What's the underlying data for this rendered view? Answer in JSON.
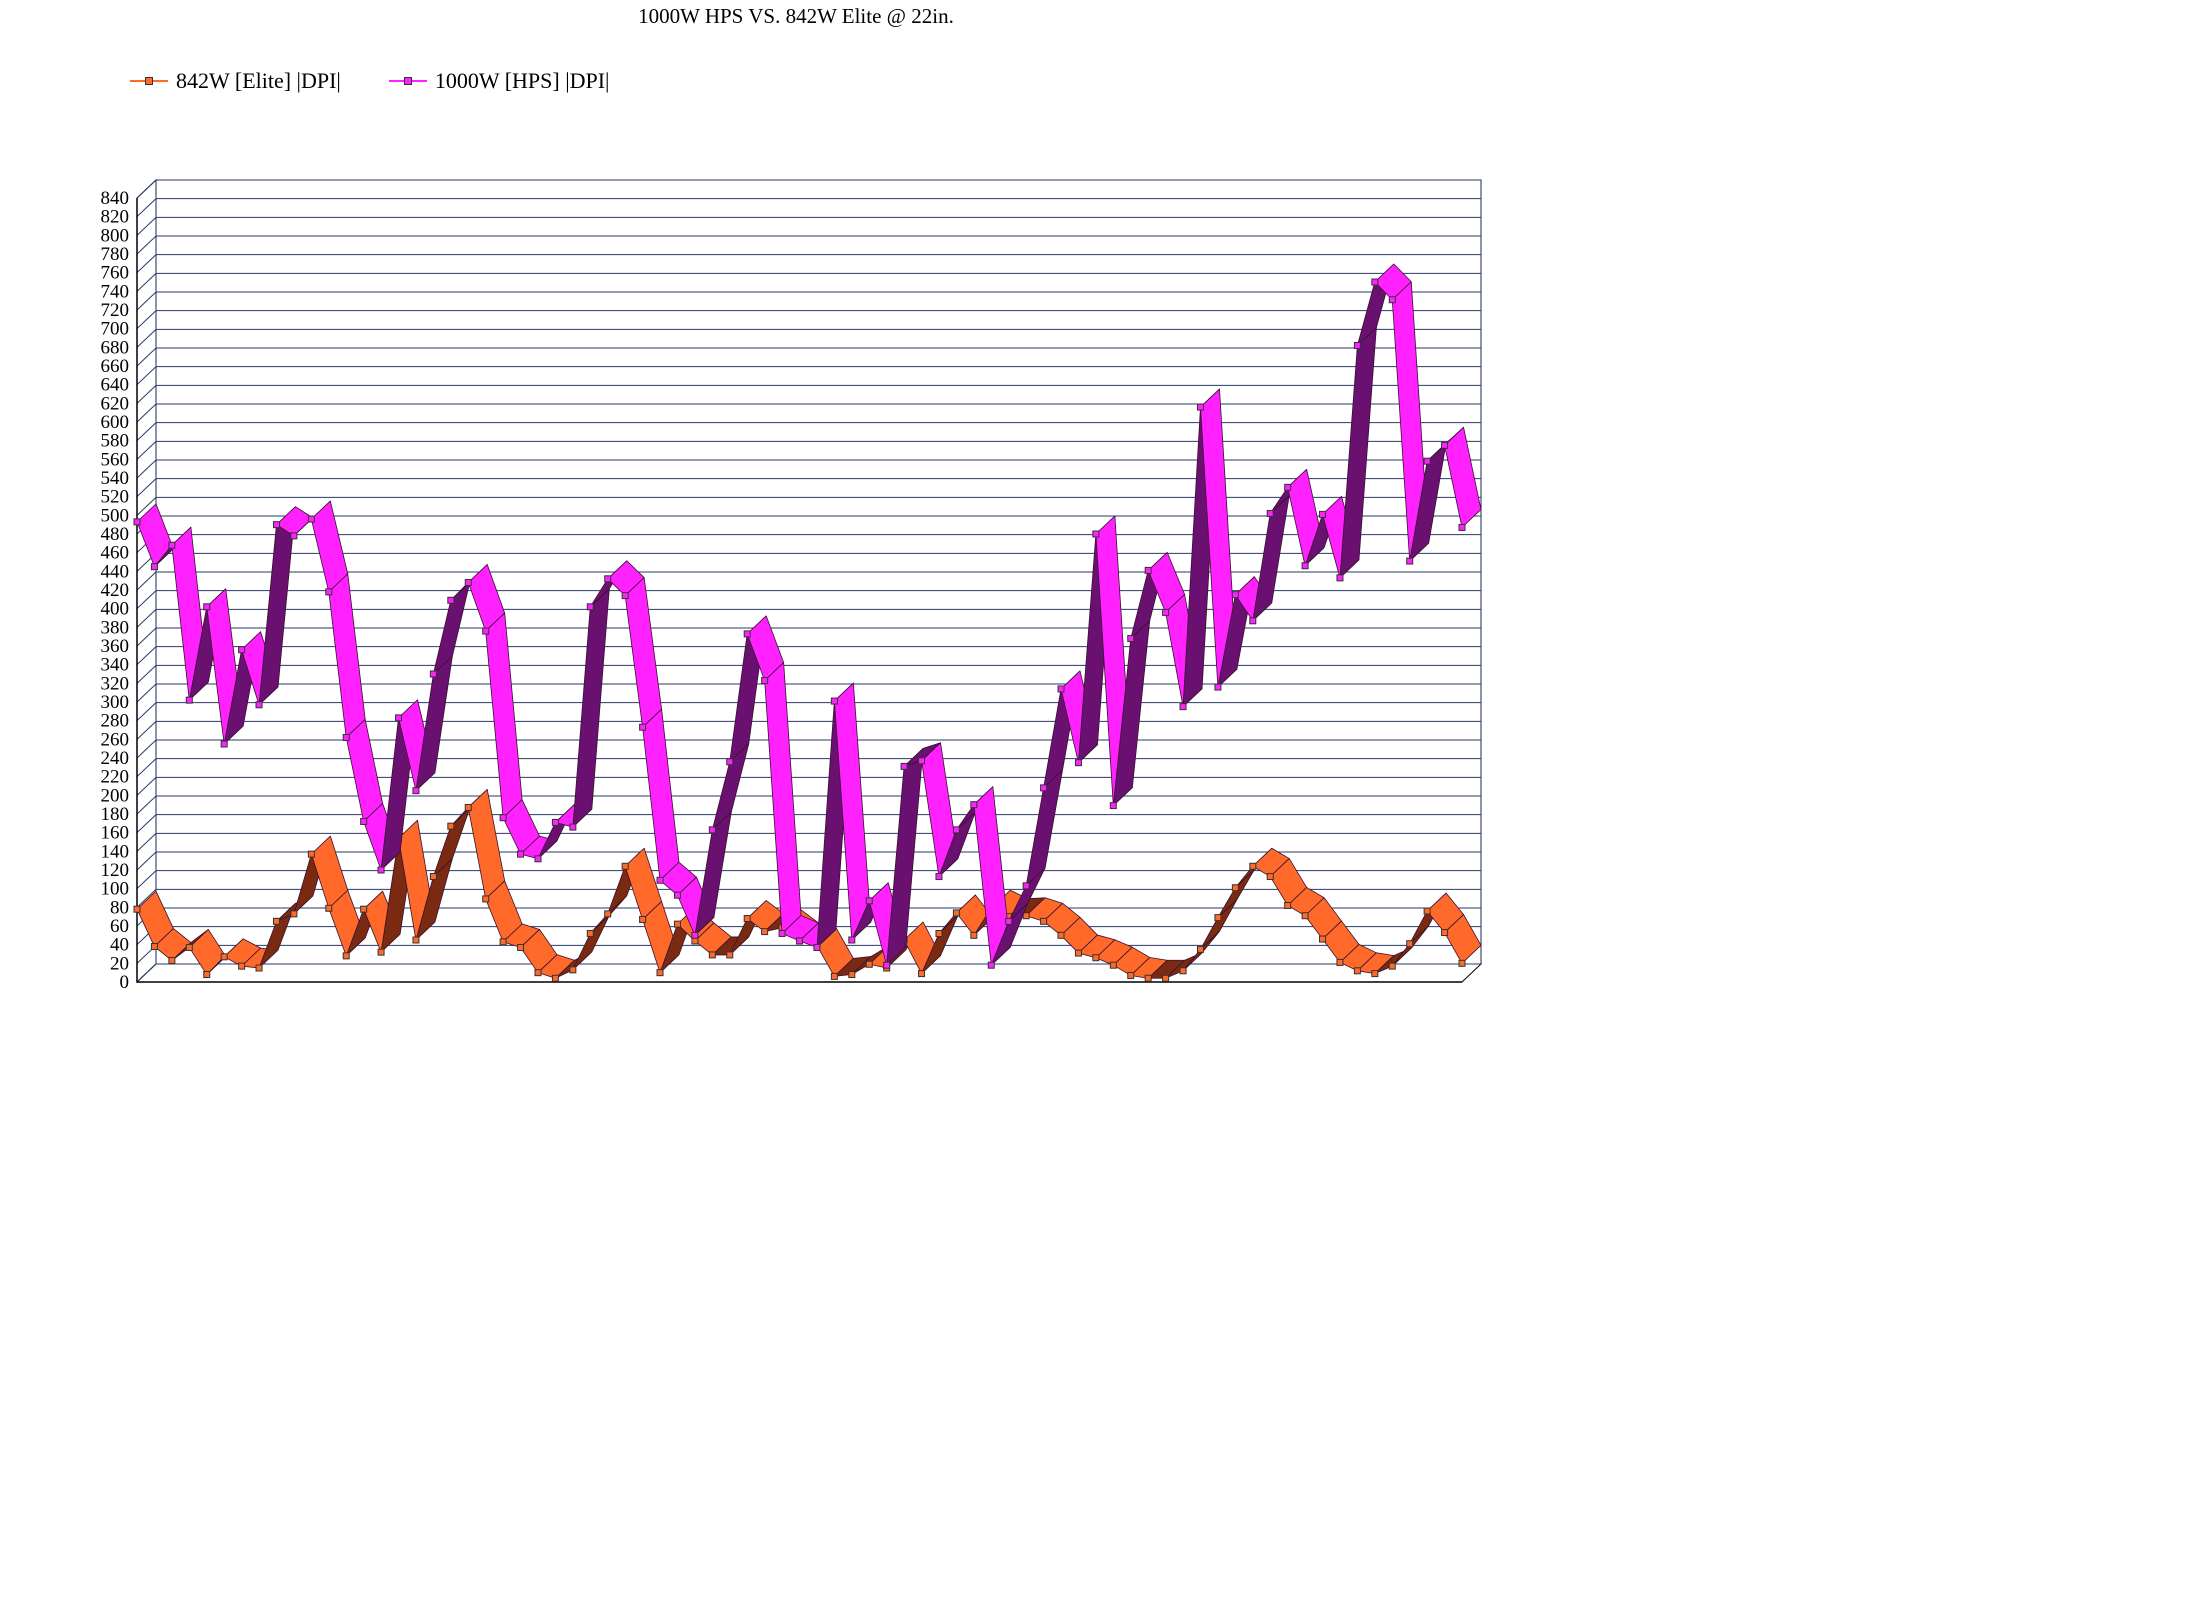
{
  "chart_data": {
    "type": "line",
    "title": "1000W HPS VS. 842W Elite @ 22in.",
    "xlabel": "",
    "ylabel": "",
    "ylim": [
      0,
      840
    ],
    "ytick_step": 20,
    "grid": true,
    "legend_position": "top-left",
    "series": [
      {
        "name": "842W [Elite] |DPI|",
        "color": "#ff6a2b",
        "dark_color": "#7a2a10",
        "values": [
          78,
          38,
          23,
          37,
          8,
          27,
          17,
          15,
          65,
          73,
          137,
          79,
          28,
          78,
          32,
          154,
          45,
          113,
          167,
          187,
          89,
          43,
          37,
          10,
          4,
          13,
          52,
          73,
          124,
          67,
          10,
          62,
          44,
          29,
          29,
          68,
          54,
          58,
          44,
          39,
          6,
          8,
          19,
          15,
          45,
          9,
          52,
          74,
          50,
          79,
          70,
          71,
          65,
          50,
          31,
          26,
          18,
          7,
          4,
          4,
          12,
          35,
          69,
          101,
          124,
          113,
          82,
          71,
          46,
          21,
          12,
          9,
          17,
          41,
          76,
          53,
          20
        ]
      },
      {
        "name": "1000W [HPS] |DPI|",
        "color": "#ff22ff",
        "dark_color": "#6a1070",
        "values": [
          493,
          445,
          468,
          302,
          402,
          255,
          356,
          297,
          490,
          478,
          496,
          418,
          262,
          172,
          120,
          283,
          205,
          330,
          409,
          428,
          376,
          176,
          137,
          132,
          171,
          166,
          402,
          432,
          414,
          273,
          109,
          93,
          50,
          163,
          236,
          373,
          323,
          52,
          44,
          37,
          301,
          45,
          87,
          18,
          231,
          237,
          113,
          163,
          190,
          18,
          65,
          103,
          208,
          314,
          235,
          480,
          189,
          368,
          441,
          396,
          295,
          616,
          316,
          415,
          387,
          502,
          530,
          446,
          501,
          433,
          682,
          750,
          731,
          451,
          558,
          575,
          487
        ]
      }
    ]
  }
}
